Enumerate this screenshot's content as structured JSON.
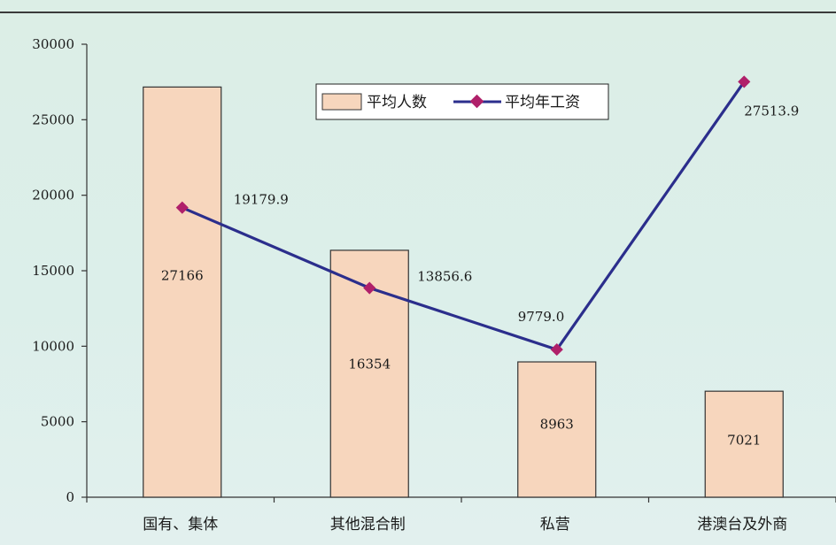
{
  "chart_data": {
    "type": "bar",
    "categories": [
      "国有、集体",
      "其他混合制",
      "私营",
      "港澳台及外商"
    ],
    "series": [
      {
        "name": "平均人数",
        "type": "bar",
        "values": [
          27166,
          16354,
          8963,
          7021
        ],
        "labels": [
          "27166",
          "16354",
          "8963",
          "7021"
        ],
        "color": "#f7d6bd"
      },
      {
        "name": "平均年工资",
        "type": "line",
        "values": [
          19179.9,
          13856.6,
          9779.0,
          27513.9
        ],
        "labels": [
          "19179.9",
          "13856.6",
          "9779.0",
          "27513.9"
        ],
        "color": "#2b2e8c",
        "marker_color": "#b0206a"
      }
    ],
    "ylim": [
      0,
      30000
    ],
    "yticks": [
      "0",
      "5000",
      "10000",
      "15000",
      "20000",
      "25000",
      "30000"
    ],
    "yticks_values": [
      0,
      5000,
      10000,
      15000,
      20000,
      25000,
      30000
    ],
    "grid": false,
    "legend_position": "top-center",
    "colors": {
      "background": "#dceee6",
      "bar_fill": "#f7d6bd",
      "bar_stroke": "#333333",
      "line": "#2b2e8c",
      "marker": "#b0206a"
    }
  }
}
